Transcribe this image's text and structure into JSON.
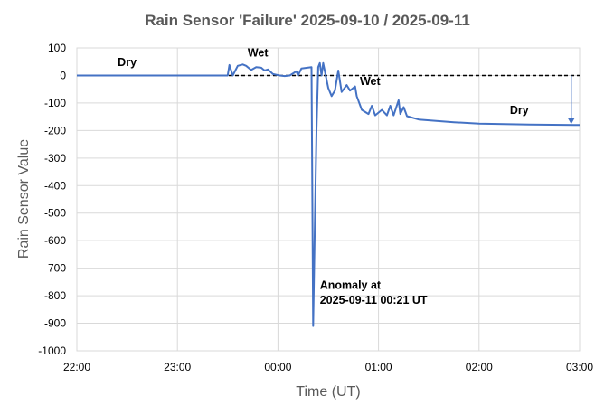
{
  "chart_data": {
    "type": "line",
    "title": "Rain Sensor 'Failure' 2025-09-10 / 2025-09-11",
    "xlabel": "Time (UT)",
    "ylabel": "Rain Sensor Value",
    "xlim": [
      "22:00",
      "03:00"
    ],
    "ylim": [
      -1000,
      100
    ],
    "x_ticks": [
      "22:00",
      "23:00",
      "00:00",
      "01:00",
      "02:00",
      "03:00"
    ],
    "y_ticks": [
      100,
      0,
      -100,
      -200,
      -300,
      -400,
      -500,
      -600,
      -700,
      -800,
      -900,
      -1000
    ],
    "grid": true,
    "series_color": "#4472c4",
    "reference_line": {
      "value": 0,
      "style": "dashed",
      "color": "#000000"
    },
    "series": [
      {
        "x": [
          "22:00",
          "23:30",
          "23:31",
          "23:33",
          "23:36",
          "23:39",
          "23:41",
          "23:44",
          "23:47",
          "23:50",
          "23:52",
          "23:54",
          "23:57",
          "00:01",
          "00:04",
          "00:07",
          "00:11",
          "00:12",
          "00:14",
          "00:20",
          "00:21",
          "00:23",
          "00:24",
          "00:25",
          "00:26",
          "00:27",
          "00:30",
          "00:32",
          "00:34",
          "00:36",
          "00:38",
          "00:41",
          "00:43",
          "00:46",
          "00:47",
          "00:50",
          "00:54",
          "00:56",
          "00:58",
          "01:02",
          "01:05",
          "01:07",
          "01:09",
          "01:12",
          "01:13",
          "01:15",
          "01:17",
          "01:24",
          "01:45",
          "02:00",
          "02:30",
          "03:00"
        ],
        "y": [
          0,
          0,
          38,
          0,
          35,
          40,
          35,
          20,
          30,
          28,
          18,
          22,
          5,
          0,
          -2,
          0,
          15,
          0,
          25,
          30,
          -910,
          -200,
          30,
          45,
          0,
          45,
          -45,
          -75,
          -55,
          18,
          -60,
          -35,
          -55,
          -40,
          -75,
          -125,
          -140,
          -110,
          -145,
          -125,
          -145,
          -110,
          -145,
          -90,
          -140,
          -115,
          -148,
          -160,
          -170,
          -175,
          -178,
          -180
        ]
      }
    ],
    "annotations": [
      {
        "text": "Dry",
        "x": "22:30",
        "y": 35
      },
      {
        "text": "Wet",
        "x": "23:48",
        "y": 68
      },
      {
        "text": "Wet",
        "x": "00:55",
        "y": -35
      },
      {
        "text": "Dry",
        "x": "02:24",
        "y": -140
      },
      {
        "text": "Anomaly at",
        "x": "00:25",
        "y": -775
      },
      {
        "text": "2025-09-11  00:21  UT",
        "x": "00:25",
        "y": -830
      }
    ],
    "arrow": {
      "x": "02:55",
      "from": 0,
      "to": -180
    }
  }
}
